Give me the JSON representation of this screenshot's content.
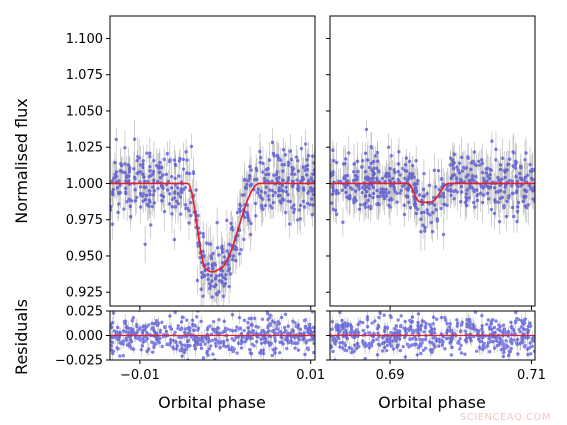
{
  "chart_data": [
    {
      "name": "flux-primary",
      "type": "scatter",
      "xlim": [
        -0.0135,
        0.0105
      ],
      "ylim": [
        0.9155,
        1.1155
      ],
      "x_ticks": [
        -0.01,
        0.01
      ],
      "x_tick_labels": [
        "",
        ""
      ],
      "y_ticks": [
        0.925,
        0.95,
        0.975,
        1.0,
        1.025,
        1.05,
        1.075,
        1.1
      ],
      "y_tick_labels": [
        "0.925",
        "0.950",
        "0.975",
        "1.000",
        "1.025",
        "1.050",
        "1.075",
        "1.100"
      ],
      "ylabel": "Normalised flux",
      "model": {
        "kind": "transit",
        "center": -0.0015,
        "ingress_start": -0.0044,
        "full_start": -0.0022,
        "full_end": -0.0008,
        "egress_end": 0.004,
        "depth": 0.061
      },
      "scatter_noise": 0.012,
      "n_points": 520
    },
    {
      "name": "flux-secondary",
      "type": "scatter",
      "xlim": [
        0.6815,
        0.7105
      ],
      "ylim": [
        0.9155,
        1.1155
      ],
      "x_ticks": [
        0.69,
        0.71
      ],
      "x_tick_labels": [
        "",
        ""
      ],
      "y_ticks": [
        0.925,
        0.95,
        0.975,
        1.0,
        1.025,
        1.05,
        1.075,
        1.1
      ],
      "y_tick_labels": [],
      "model": {
        "kind": "transit",
        "center": 0.695,
        "ingress_start": 0.6925,
        "full_start": 0.6942,
        "full_end": 0.6958,
        "egress_end": 0.6983,
        "depth": 0.013
      },
      "scatter_noise": 0.01,
      "n_points": 520
    },
    {
      "name": "residuals-primary",
      "type": "scatter",
      "xlim": [
        -0.0135,
        0.0105
      ],
      "ylim": [
        -0.025,
        0.025
      ],
      "x_ticks": [
        -0.01,
        0.01
      ],
      "x_tick_labels": [
        "−0.01",
        "0.01"
      ],
      "y_ticks": [
        -0.025,
        0.0,
        0.025
      ],
      "y_tick_labels": [
        "−0.025",
        "0.000",
        "0.025"
      ],
      "xlabel": "Orbital phase",
      "ylabel": "Residuals",
      "scatter_noise": 0.01,
      "n_points": 520
    },
    {
      "name": "residuals-secondary",
      "type": "scatter",
      "xlim": [
        0.6815,
        0.7105
      ],
      "ylim": [
        -0.025,
        0.025
      ],
      "x_ticks": [
        0.69,
        0.71
      ],
      "x_tick_labels": [
        "0.69",
        "0.71"
      ],
      "y_ticks": [
        -0.025,
        0.0,
        0.025
      ],
      "y_tick_labels": [],
      "xlabel": "Orbital phase",
      "scatter_noise": 0.01,
      "n_points": 520
    }
  ],
  "colors": {
    "points": "#1f1fd6",
    "errorbars": "#8a8a8a",
    "model": "#e0202a",
    "axes": "#000000"
  },
  "watermark": "SCIENCEAQ.COM"
}
